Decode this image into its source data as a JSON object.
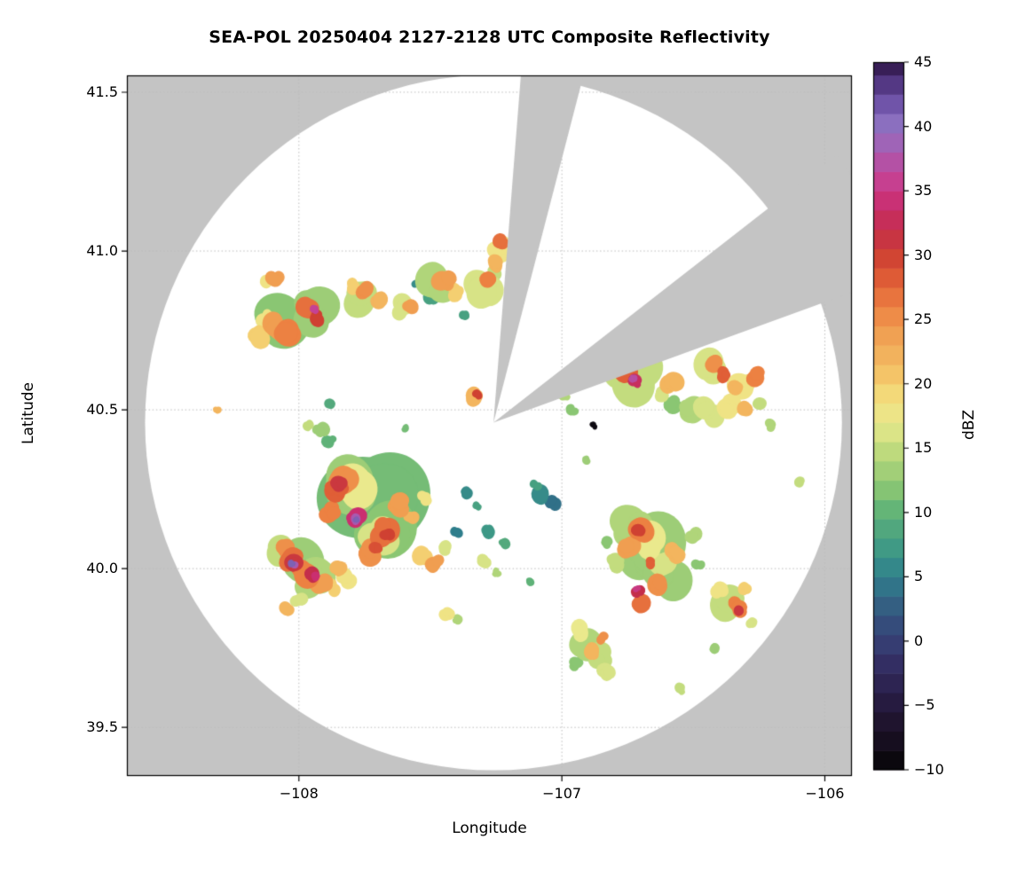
{
  "chart_data": {
    "type": "heatmap",
    "title": "SEA-POL 20250404 2127-2128 UTC Composite Reflectivity",
    "xlabel": "Longitude",
    "ylabel": "Latitude",
    "xlim": [
      -108.654,
      -105.897
    ],
    "ylim": [
      39.347,
      41.553
    ],
    "x_ticks": [
      -108,
      -107,
      -106
    ],
    "x_tick_labels": [
      "−108",
      "−107",
      "−106"
    ],
    "y_ticks": [
      39.5,
      40.0,
      40.5,
      41.0,
      41.5
    ],
    "y_tick_labels": [
      "39.5",
      "40.0",
      "40.5",
      "41.0",
      "41.5"
    ],
    "grid": true,
    "colors": {
      "outside_scan": "#c4c4c4",
      "inside_scan": "#ffffff",
      "gridline": "#bdbdbd",
      "frame": "#000000"
    },
    "radar": {
      "center_lon": -107.26,
      "center_lat": 40.46,
      "radius_lon_deg": 1.325,
      "radius_lat_deg": 1.095,
      "blocked_sectors_azimuth_deg": [
        [
          4.5,
          15
        ],
        [
          52,
          70
        ]
      ]
    },
    "colorbar": {
      "label": "dBZ",
      "min": -10,
      "max": 45,
      "ticks": [
        45,
        40,
        35,
        30,
        25,
        20,
        15,
        10,
        5,
        0,
        -5,
        -10
      ],
      "tick_labels": [
        "45",
        "40",
        "35",
        "30",
        "25",
        "20",
        "15",
        "10",
        "5",
        "0",
        "−5",
        "−10"
      ],
      "step": 1.5,
      "stops": [
        [
          -10,
          "#050505"
        ],
        [
          -8,
          "#140d1c"
        ],
        [
          -6,
          "#201531"
        ],
        [
          -4,
          "#2a1f49"
        ],
        [
          -2,
          "#322c60"
        ],
        [
          0,
          "#363f74"
        ],
        [
          2,
          "#35547f"
        ],
        [
          5,
          "#2f7e8c"
        ],
        [
          7,
          "#3d9886"
        ],
        [
          10,
          "#5fb278"
        ],
        [
          12,
          "#8ac673"
        ],
        [
          15,
          "#c3dc7e"
        ],
        [
          17,
          "#eae98d"
        ],
        [
          19,
          "#f3dc7c"
        ],
        [
          21,
          "#f4c165"
        ],
        [
          24,
          "#f09e51"
        ],
        [
          26,
          "#ec8142"
        ],
        [
          28,
          "#e05f37"
        ],
        [
          30,
          "#cf4132"
        ],
        [
          32,
          "#c42e4b"
        ],
        [
          34,
          "#ca2f70"
        ],
        [
          36,
          "#c54295"
        ],
        [
          38,
          "#a95aaf"
        ],
        [
          40,
          "#8f74c3"
        ],
        [
          42,
          "#6c4fa5"
        ],
        [
          44,
          "#452a70"
        ],
        [
          45,
          "#2a123e"
        ]
      ]
    },
    "cells": [
      [
        -108.07,
        40.77,
        0.1,
        12
      ],
      [
        -107.95,
        40.8,
        0.09,
        13
      ],
      [
        -108.16,
        40.73,
        0.04,
        20
      ],
      [
        -108.13,
        40.79,
        0.03,
        18
      ],
      [
        -108.1,
        40.76,
        0.05,
        24
      ],
      [
        -108.03,
        40.74,
        0.045,
        26
      ],
      [
        -107.97,
        40.82,
        0.05,
        27
      ],
      [
        -107.93,
        40.79,
        0.035,
        30
      ],
      [
        -107.94,
        40.815,
        0.018,
        36
      ],
      [
        -108.09,
        40.92,
        0.035,
        24
      ],
      [
        -108.12,
        40.9,
        0.025,
        18
      ],
      [
        -107.76,
        40.86,
        0.07,
        15
      ],
      [
        -107.74,
        40.87,
        0.04,
        25
      ],
      [
        -107.7,
        40.84,
        0.03,
        22
      ],
      [
        -107.8,
        40.89,
        0.025,
        20
      ],
      [
        -107.6,
        40.82,
        0.05,
        16
      ],
      [
        -107.58,
        40.83,
        0.03,
        24
      ],
      [
        -107.47,
        40.89,
        0.07,
        14
      ],
      [
        -107.44,
        40.91,
        0.04,
        24
      ],
      [
        -107.5,
        40.86,
        0.03,
        8
      ],
      [
        -107.4,
        40.87,
        0.03,
        20
      ],
      [
        -107.3,
        40.88,
        0.06,
        16
      ],
      [
        -107.28,
        40.9,
        0.035,
        26
      ],
      [
        -107.33,
        40.85,
        0.025,
        10
      ],
      [
        -107.24,
        41.0,
        0.05,
        18
      ],
      [
        -107.23,
        41.03,
        0.03,
        27
      ],
      [
        -107.25,
        40.96,
        0.03,
        22
      ],
      [
        -107.26,
        40.93,
        0.025,
        15
      ],
      [
        -107.55,
        40.9,
        0.02,
        6
      ],
      [
        -107.37,
        40.8,
        0.02,
        8
      ],
      [
        -106.74,
        40.6,
        0.09,
        15
      ],
      [
        -106.78,
        40.64,
        0.05,
        20
      ],
      [
        -106.75,
        40.61,
        0.04,
        28
      ],
      [
        -106.72,
        40.59,
        0.025,
        33
      ],
      [
        -106.73,
        40.6,
        0.015,
        37
      ],
      [
        -106.58,
        40.58,
        0.04,
        22
      ],
      [
        -106.62,
        40.55,
        0.03,
        16
      ],
      [
        -106.44,
        40.63,
        0.06,
        16
      ],
      [
        -106.42,
        40.65,
        0.035,
        25
      ],
      [
        -106.38,
        40.61,
        0.025,
        28
      ],
      [
        -106.3,
        40.59,
        0.06,
        18
      ],
      [
        -106.27,
        40.61,
        0.035,
        26
      ],
      [
        -106.33,
        40.57,
        0.03,
        22
      ],
      [
        -106.52,
        40.5,
        0.05,
        14
      ],
      [
        -106.44,
        40.49,
        0.045,
        16
      ],
      [
        -106.36,
        40.51,
        0.04,
        18
      ],
      [
        -106.3,
        40.5,
        0.03,
        22
      ],
      [
        -106.58,
        40.52,
        0.03,
        12
      ],
      [
        -106.25,
        40.52,
        0.025,
        15
      ],
      [
        -106.88,
        40.45,
        0.015,
        -9
      ],
      [
        -107.33,
        40.54,
        0.035,
        22
      ],
      [
        -107.32,
        40.55,
        0.02,
        30
      ],
      [
        -106.99,
        40.54,
        0.02,
        14
      ],
      [
        -106.96,
        40.5,
        0.018,
        12
      ],
      [
        -106.21,
        40.45,
        0.02,
        14
      ],
      [
        -106.1,
        40.27,
        0.018,
        15
      ],
      [
        -106.91,
        40.34,
        0.02,
        13
      ],
      [
        -107.74,
        40.2,
        0.17,
        11
      ],
      [
        -107.68,
        40.14,
        0.12,
        12
      ],
      [
        -107.8,
        40.28,
        0.1,
        13
      ],
      [
        -107.76,
        40.24,
        0.08,
        17
      ],
      [
        -107.7,
        40.1,
        0.07,
        16
      ],
      [
        -107.83,
        40.29,
        0.05,
        25
      ],
      [
        -107.86,
        40.24,
        0.045,
        28
      ],
      [
        -107.67,
        40.12,
        0.05,
        27
      ],
      [
        -107.62,
        40.2,
        0.04,
        24
      ],
      [
        -107.73,
        40.05,
        0.04,
        25
      ],
      [
        -107.88,
        40.18,
        0.035,
        26
      ],
      [
        -107.84,
        40.27,
        0.03,
        31
      ],
      [
        -107.66,
        40.11,
        0.03,
        30
      ],
      [
        -107.7,
        40.07,
        0.025,
        29
      ],
      [
        -107.79,
        40.16,
        0.035,
        34
      ],
      [
        -107.78,
        40.15,
        0.022,
        38
      ],
      [
        -107.785,
        40.155,
        0.013,
        41
      ],
      [
        -107.57,
        40.16,
        0.03,
        22
      ],
      [
        -107.52,
        40.22,
        0.025,
        18
      ],
      [
        -107.62,
        40.3,
        0.03,
        8
      ],
      [
        -107.55,
        40.28,
        0.025,
        6
      ],
      [
        -108.0,
        40.02,
        0.09,
        13
      ],
      [
        -107.93,
        39.97,
        0.08,
        14
      ],
      [
        -108.06,
        40.06,
        0.05,
        15
      ],
      [
        -108.02,
        40.03,
        0.05,
        27
      ],
      [
        -107.97,
        39.99,
        0.05,
        26
      ],
      [
        -107.91,
        39.95,
        0.04,
        24
      ],
      [
        -108.05,
        40.07,
        0.035,
        25
      ],
      [
        -108.01,
        40.02,
        0.035,
        31
      ],
      [
        -107.95,
        39.98,
        0.03,
        32
      ],
      [
        -107.94,
        39.975,
        0.018,
        34
      ],
      [
        -108.02,
        40.01,
        0.02,
        38
      ],
      [
        -108.025,
        40.015,
        0.012,
        41
      ],
      [
        -108.04,
        39.87,
        0.03,
        22
      ],
      [
        -108.0,
        39.9,
        0.025,
        16
      ],
      [
        -107.87,
        39.94,
        0.03,
        20
      ],
      [
        -107.82,
        39.97,
        0.035,
        18
      ],
      [
        -107.85,
        40.0,
        0.03,
        22
      ],
      [
        -107.52,
        40.05,
        0.04,
        20
      ],
      [
        -107.48,
        40.02,
        0.03,
        24
      ],
      [
        -107.45,
        40.06,
        0.025,
        16
      ],
      [
        -107.36,
        40.24,
        0.025,
        6
      ],
      [
        -107.32,
        40.2,
        0.02,
        8
      ],
      [
        -107.28,
        40.12,
        0.025,
        7
      ],
      [
        -107.4,
        40.12,
        0.02,
        5
      ],
      [
        -107.22,
        40.08,
        0.02,
        9
      ],
      [
        -107.07,
        40.23,
        0.035,
        6
      ],
      [
        -107.03,
        40.21,
        0.025,
        4
      ],
      [
        -107.1,
        40.26,
        0.02,
        8
      ],
      [
        -107.3,
        40.02,
        0.025,
        16
      ],
      [
        -107.25,
        39.99,
        0.02,
        14
      ],
      [
        -107.44,
        39.86,
        0.025,
        18
      ],
      [
        -107.4,
        39.84,
        0.018,
        14
      ],
      [
        -107.92,
        40.43,
        0.03,
        13
      ],
      [
        -107.88,
        40.4,
        0.025,
        10
      ],
      [
        -107.96,
        40.45,
        0.02,
        15
      ],
      [
        -108.31,
        40.5,
        0.015,
        22
      ],
      [
        -107.88,
        40.52,
        0.02,
        9
      ],
      [
        -107.6,
        40.44,
        0.018,
        11
      ],
      [
        -106.66,
        40.04,
        0.12,
        13
      ],
      [
        -106.72,
        40.12,
        0.08,
        14
      ],
      [
        -106.6,
        39.96,
        0.08,
        13
      ],
      [
        -106.68,
        40.08,
        0.06,
        17
      ],
      [
        -106.62,
        40.0,
        0.05,
        16
      ],
      [
        -106.7,
        40.13,
        0.045,
        26
      ],
      [
        -106.74,
        40.06,
        0.04,
        24
      ],
      [
        -106.64,
        39.95,
        0.04,
        25
      ],
      [
        -106.57,
        40.05,
        0.035,
        22
      ],
      [
        -106.7,
        39.9,
        0.035,
        27
      ],
      [
        -106.71,
        40.12,
        0.025,
        30
      ],
      [
        -106.71,
        39.93,
        0.022,
        32
      ],
      [
        -106.67,
        40.02,
        0.02,
        28
      ],
      [
        -106.715,
        39.935,
        0.013,
        35
      ],
      [
        -106.5,
        40.1,
        0.03,
        14
      ],
      [
        -106.48,
        40.02,
        0.025,
        12
      ],
      [
        -106.8,
        40.02,
        0.03,
        15
      ],
      [
        -106.83,
        40.08,
        0.02,
        12
      ],
      [
        -106.36,
        39.9,
        0.06,
        15
      ],
      [
        -106.33,
        39.88,
        0.04,
        26
      ],
      [
        -106.32,
        39.87,
        0.022,
        31
      ],
      [
        -106.4,
        39.93,
        0.03,
        18
      ],
      [
        -106.3,
        39.94,
        0.025,
        20
      ],
      [
        -106.28,
        39.83,
        0.02,
        16
      ],
      [
        -106.9,
        39.76,
        0.06,
        14
      ],
      [
        -106.86,
        39.72,
        0.05,
        15
      ],
      [
        -106.93,
        39.8,
        0.035,
        17
      ],
      [
        -106.88,
        39.74,
        0.03,
        22
      ],
      [
        -106.83,
        39.68,
        0.03,
        16
      ],
      [
        -106.95,
        39.7,
        0.025,
        12
      ],
      [
        -106.85,
        39.78,
        0.02,
        25
      ],
      [
        -106.55,
        39.62,
        0.02,
        15
      ],
      [
        -106.42,
        39.75,
        0.02,
        13
      ],
      [
        -107.12,
        39.96,
        0.018,
        10
      ]
    ]
  }
}
